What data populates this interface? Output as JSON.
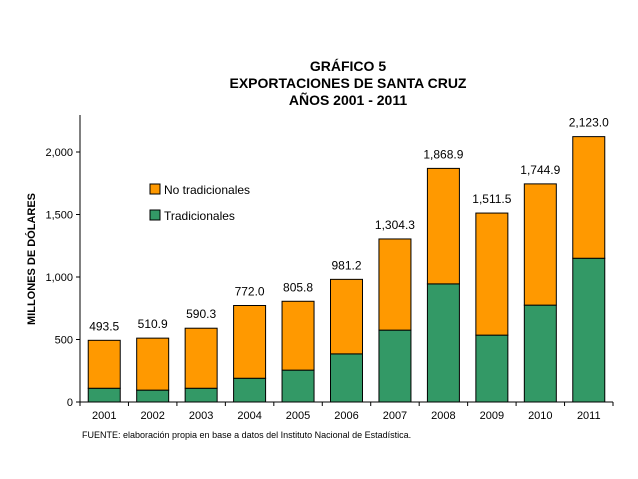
{
  "chart_data": {
    "type": "bar",
    "stacked": true,
    "title": [
      "GRÁFICO 5",
      "EXPORTACIONES DE SANTA CRUZ",
      "AÑOS 2001 - 2011"
    ],
    "ylabel": "MILLONES DE DÓLARES",
    "xlabel": "",
    "ylim": [
      0,
      2000
    ],
    "yticks": [
      "0",
      "500",
      "1,000",
      "1,500",
      "2,000"
    ],
    "ytick_values": [
      0,
      500,
      1000,
      1500,
      2000
    ],
    "categories": [
      "2001",
      "2002",
      "2003",
      "2004",
      "2005",
      "2006",
      "2007",
      "2008",
      "2009",
      "2010",
      "2011"
    ],
    "series": [
      {
        "name": "Tradicionales",
        "color": "#339966",
        "values": [
          110,
          95,
          110,
          190,
          255,
          385,
          575,
          945,
          535,
          775,
          1150
        ]
      },
      {
        "name": "No tradicionales",
        "color": "#ff9900",
        "values": [
          383.5,
          415.9,
          480.3,
          582.0,
          550.8,
          596.2,
          729.3,
          923.9,
          976.5,
          969.9,
          973.0
        ]
      }
    ],
    "totals": [
      493.5,
      510.9,
      590.3,
      772.0,
      805.8,
      981.2,
      1304.3,
      1868.9,
      1511.5,
      1744.9,
      2123.0
    ],
    "total_labels": [
      "493.5",
      "510.9",
      "590.3",
      "772.0",
      "805.8",
      "981.2",
      "1,304.3",
      "1,868.9",
      "1,511.5",
      "1,744.9",
      "2,123.0"
    ],
    "legend_position": "upper-left",
    "grid": false
  },
  "footnote": "FUENTE: elaboración propia en base a datos del Instituto Nacional de Estadística."
}
